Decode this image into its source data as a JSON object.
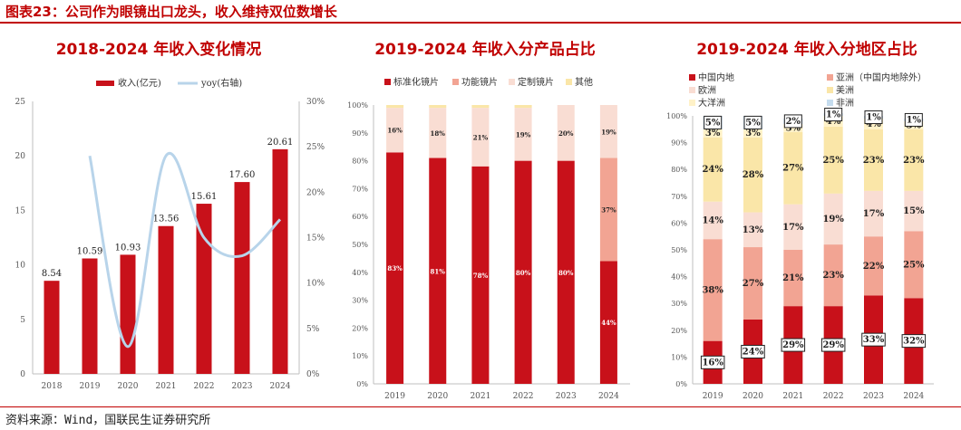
{
  "figure_title": "图表23：公司作为眼镜出口龙头，收入维持双位数增长",
  "source": "资料来源：Wind，国联民生证券研究所",
  "colors": {
    "brand": "#c00000",
    "red": "#c8111a",
    "salmon": "#f2a493",
    "pink": "#f9ddd3",
    "cream": "#fae6a8",
    "light_yellow": "#fff2c8",
    "light_blue": "#c5dcee",
    "line_blue": "#b8d4ea"
  },
  "chart_data": [
    {
      "type": "bar",
      "title": "2018-2024 年收入变化情况",
      "categories": [
        "2018",
        "2019",
        "2020",
        "2021",
        "2022",
        "2023",
        "2024"
      ],
      "series": [
        {
          "name": "收入(亿元)",
          "type": "bar",
          "axis": "left",
          "values": [
            8.54,
            10.59,
            10.93,
            13.56,
            15.61,
            17.6,
            20.61
          ],
          "labels": [
            "8.54",
            "10.59",
            "10.93",
            "13.56",
            "15.61",
            "17.60",
            "20.61"
          ]
        },
        {
          "name": "yoy(右轴)",
          "type": "line",
          "axis": "right",
          "values": [
            null,
            24,
            3,
            24,
            15,
            13,
            17
          ]
        }
      ],
      "ylim": [
        0,
        25
      ],
      "y2lim": [
        0,
        30
      ],
      "yticks": [
        "0",
        "5",
        "10",
        "15",
        "20",
        "25"
      ],
      "y2ticks": [
        "0%",
        "5%",
        "10%",
        "15%",
        "20%",
        "25%",
        "30%"
      ],
      "legend": "top"
    },
    {
      "type": "bar",
      "stacked": true,
      "title": "2019-2024 年收入分产品占比",
      "categories": [
        "2019",
        "2020",
        "2021",
        "2022",
        "2023",
        "2024"
      ],
      "series": [
        {
          "name": "标准化镜片",
          "color": "red",
          "values": [
            83,
            81,
            78,
            80,
            80,
            44
          ],
          "labels": [
            "83%",
            "81%",
            "78%",
            "80%",
            "80%",
            "44%"
          ]
        },
        {
          "name": "功能镜片",
          "color": "salmon",
          "values": [
            0,
            0,
            0,
            0,
            0,
            37
          ],
          "labels": [
            "",
            "",
            "",
            "",
            "",
            "37%"
          ]
        },
        {
          "name": "定制镜片",
          "color": "pink",
          "values": [
            16,
            18,
            21,
            19,
            20,
            19
          ],
          "labels": [
            "16%",
            "18%",
            "21%",
            "19%",
            "20%",
            "19%"
          ]
        },
        {
          "name": "其他",
          "color": "cream",
          "values": [
            1,
            1,
            1,
            1,
            0,
            0
          ],
          "labels": [
            "",
            "",
            "",
            "",
            "",
            ""
          ]
        }
      ],
      "ylim": [
        0,
        100
      ],
      "yticks": [
        "0%",
        "10%",
        "20%",
        "30%",
        "40%",
        "50%",
        "60%",
        "70%",
        "80%",
        "90%",
        "100%"
      ],
      "legend": "top"
    },
    {
      "type": "bar",
      "stacked": true,
      "title": "2019-2024 年收入分地区占比",
      "categories": [
        "2019",
        "2020",
        "2021",
        "2022",
        "2023",
        "2024"
      ],
      "series": [
        {
          "name": "中国内地",
          "color": "red",
          "values": [
            16,
            24,
            29,
            29,
            33,
            32
          ],
          "labels": [
            "16%",
            "24%",
            "29%",
            "29%",
            "33%",
            "32%"
          ],
          "boxed": true
        },
        {
          "name": "亚洲（中国内地除外）",
          "color": "salmon",
          "values": [
            38,
            27,
            21,
            23,
            22,
            25
          ],
          "labels": [
            "38%",
            "27%",
            "21%",
            "23%",
            "22%",
            "25%"
          ]
        },
        {
          "name": "欧洲",
          "color": "pink",
          "values": [
            14,
            13,
            17,
            19,
            17,
            15
          ],
          "labels": [
            "14%",
            "13%",
            "17%",
            "19%",
            "17%",
            "15%"
          ]
        },
        {
          "name": "美洲",
          "color": "cream",
          "values": [
            24,
            28,
            27,
            25,
            23,
            23
          ],
          "labels": [
            "24%",
            "28%",
            "27%",
            "25%",
            "23%",
            "23%"
          ]
        },
        {
          "name": "大洋洲",
          "color": "light_yellow",
          "values": [
            3,
            3,
            3,
            4,
            4,
            3
          ],
          "labels": [
            "3%",
            "3%",
            "3%",
            "4%",
            "4%",
            "3%"
          ]
        },
        {
          "name": "非洲",
          "color": "light_blue",
          "values": [
            5,
            5,
            2,
            1,
            1,
            1
          ],
          "labels": [
            "5%",
            "5%",
            "2%",
            "1%",
            "1%",
            "1%"
          ],
          "boxed": true
        }
      ],
      "ylim": [
        0,
        100
      ],
      "yticks": [
        "0%",
        "10%",
        "20%",
        "30%",
        "40%",
        "50%",
        "60%",
        "70%",
        "80%",
        "90%",
        "100%"
      ],
      "legend": "top"
    }
  ]
}
